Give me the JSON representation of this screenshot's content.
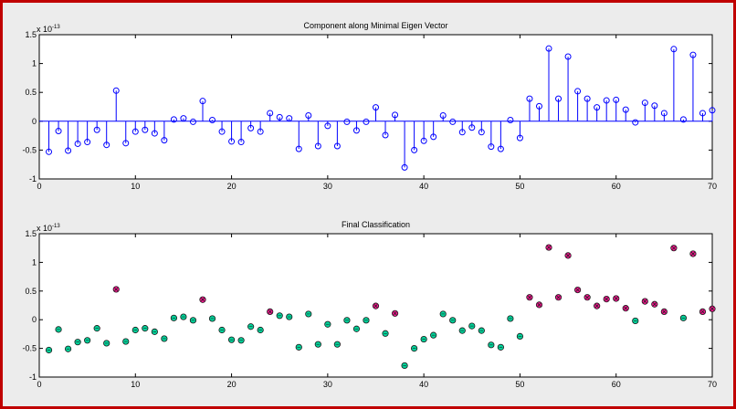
{
  "chart_data": [
    {
      "type": "stem",
      "title": "Component along Minimal Eigen Vector",
      "scale_label": "x 10",
      "scale_exponent": "-13",
      "xlim": [
        0,
        70
      ],
      "ylim": [
        -1,
        1.5
      ],
      "xticks": [
        0,
        10,
        20,
        30,
        40,
        50,
        60,
        70
      ],
      "yticks": [
        -1,
        -0.5,
        0,
        0.5,
        1,
        1.5
      ],
      "ytick_labels": [
        "-1",
        "-0.5",
        "0",
        "0.5",
        "1",
        "1.5"
      ],
      "color": "#0000ff",
      "marker": "open-circle",
      "x": [
        1,
        2,
        3,
        4,
        5,
        6,
        7,
        8,
        9,
        10,
        11,
        12,
        13,
        14,
        15,
        16,
        17,
        18,
        19,
        20,
        21,
        22,
        23,
        24,
        25,
        26,
        27,
        28,
        29,
        30,
        31,
        32,
        33,
        34,
        35,
        36,
        37,
        38,
        39,
        40,
        41,
        42,
        43,
        44,
        45,
        46,
        47,
        48,
        49,
        50,
        51,
        52,
        53,
        54,
        55,
        56,
        57,
        58,
        59,
        60,
        61,
        62,
        63,
        64,
        65,
        66,
        67,
        68,
        69,
        70
      ],
      "values": [
        -0.53,
        -0.17,
        -0.51,
        -0.39,
        -0.36,
        -0.15,
        -0.41,
        0.53,
        -0.38,
        -0.18,
        -0.15,
        -0.21,
        -0.33,
        0.03,
        0.05,
        -0.01,
        0.35,
        0.02,
        -0.18,
        -0.35,
        -0.36,
        -0.12,
        -0.18,
        0.14,
        0.07,
        0.05,
        -0.48,
        0.1,
        -0.43,
        -0.08,
        -0.43,
        -0.01,
        -0.16,
        -0.01,
        0.24,
        -0.24,
        0.11,
        -0.8,
        -0.5,
        -0.34,
        -0.27,
        0.1,
        -0.01,
        -0.19,
        -0.11,
        -0.19,
        -0.44,
        -0.48,
        0.02,
        -0.29,
        0.39,
        0.26,
        1.26,
        0.39,
        1.12,
        0.52,
        0.39,
        0.24,
        0.36,
        0.37,
        0.2,
        -0.02,
        0.32,
        0.27,
        0.14,
        1.25,
        0.03,
        1.15,
        0.14,
        0.19
      ]
    },
    {
      "type": "scatter",
      "title": "Final Classification",
      "scale_label": "x 10",
      "scale_exponent": "-13",
      "xlim": [
        0,
        70
      ],
      "ylim": [
        -1,
        1.5
      ],
      "xticks": [
        0,
        10,
        20,
        30,
        40,
        50,
        60,
        70
      ],
      "yticks": [
        -1,
        -0.5,
        0,
        0.5,
        1,
        1.5
      ],
      "ytick_labels": [
        "-1",
        "-0.5",
        "0",
        "0.5",
        "1",
        "1.5"
      ],
      "class_colors": {
        "positive": "#ff1493",
        "negative": "#00d39a"
      },
      "marker_edge_color": "#1a1a1a",
      "x": [
        1,
        2,
        3,
        4,
        5,
        6,
        7,
        8,
        9,
        10,
        11,
        12,
        13,
        14,
        15,
        16,
        17,
        18,
        19,
        20,
        21,
        22,
        23,
        24,
        25,
        26,
        27,
        28,
        29,
        30,
        31,
        32,
        33,
        34,
        35,
        36,
        37,
        38,
        39,
        40,
        41,
        42,
        43,
        44,
        45,
        46,
        47,
        48,
        49,
        50,
        51,
        52,
        53,
        54,
        55,
        56,
        57,
        58,
        59,
        60,
        61,
        62,
        63,
        64,
        65,
        66,
        67,
        68,
        69,
        70
      ],
      "values": [
        -0.53,
        -0.17,
        -0.51,
        -0.39,
        -0.36,
        -0.15,
        -0.41,
        0.53,
        -0.38,
        -0.18,
        -0.15,
        -0.21,
        -0.33,
        0.03,
        0.05,
        -0.01,
        0.35,
        0.02,
        -0.18,
        -0.35,
        -0.36,
        -0.12,
        -0.18,
        0.14,
        0.07,
        0.05,
        -0.48,
        0.1,
        -0.43,
        -0.08,
        -0.43,
        -0.01,
        -0.16,
        -0.01,
        0.24,
        -0.24,
        0.11,
        -0.8,
        -0.5,
        -0.34,
        -0.27,
        0.1,
        -0.01,
        -0.19,
        -0.11,
        -0.19,
        -0.44,
        -0.48,
        0.02,
        -0.29,
        0.39,
        0.26,
        1.26,
        0.39,
        1.12,
        0.52,
        0.39,
        0.24,
        0.36,
        0.37,
        0.2,
        -0.02,
        0.32,
        0.27,
        0.14,
        1.25,
        0.03,
        1.15,
        0.14,
        0.19
      ],
      "classes": [
        "negative",
        "negative",
        "negative",
        "negative",
        "negative",
        "negative",
        "negative",
        "positive",
        "negative",
        "negative",
        "negative",
        "negative",
        "negative",
        "negative",
        "negative",
        "negative",
        "positive",
        "negative",
        "negative",
        "negative",
        "negative",
        "negative",
        "negative",
        "positive",
        "negative",
        "negative",
        "negative",
        "negative",
        "negative",
        "negative",
        "negative",
        "negative",
        "negative",
        "negative",
        "positive",
        "negative",
        "positive",
        "negative",
        "negative",
        "negative",
        "negative",
        "negative",
        "negative",
        "negative",
        "negative",
        "negative",
        "negative",
        "negative",
        "negative",
        "negative",
        "positive",
        "positive",
        "positive",
        "positive",
        "positive",
        "positive",
        "positive",
        "positive",
        "positive",
        "positive",
        "positive",
        "negative",
        "positive",
        "positive",
        "positive",
        "positive",
        "negative",
        "positive",
        "positive",
        "positive"
      ]
    }
  ]
}
